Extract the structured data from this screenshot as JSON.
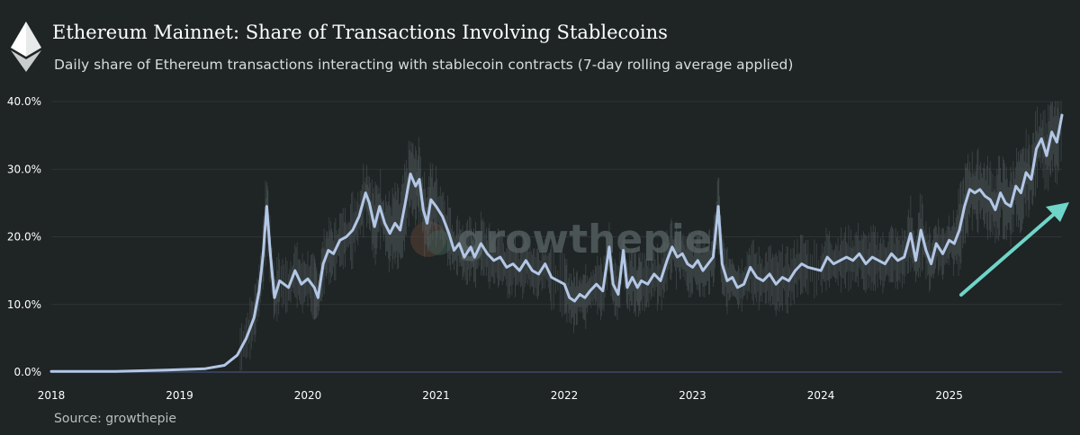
{
  "header": {
    "title": "Ethereum Mainnet: Share of Transactions Involving Stablecoins",
    "subtitle": "Daily share of Ethereum transactions interacting with stablecoin contracts (7-day rolling average applied)",
    "logo_icon": "ethereum-logo-icon"
  },
  "watermark": {
    "text": "growthepie"
  },
  "footer": {
    "source": "Source: growthepie"
  },
  "colors": {
    "background": "#1f2424",
    "line": "#b3c7e6",
    "noise": "#596366",
    "grid": "#2e3436",
    "baseline": "#3d4a66",
    "arrow": "#6fd5c8"
  },
  "chart_data": {
    "type": "line",
    "title": "Ethereum Mainnet: Share of Transactions Involving Stablecoins",
    "subtitle": "Daily share of Ethereum transactions interacting with stablecoin contracts (7-day rolling average applied)",
    "xlabel": "",
    "ylabel": "",
    "x_ticks": [
      "2018",
      "2019",
      "2020",
      "2021",
      "2022",
      "2023",
      "2024",
      "2025"
    ],
    "y_ticks": [
      "0.0%",
      "10.0%",
      "20.0%",
      "30.0%",
      "40.0%"
    ],
    "xlim": [
      2018.0,
      2025.88
    ],
    "ylim": [
      0,
      40
    ],
    "grid": "horizontal",
    "annotation": "upward-arrow",
    "series": [
      {
        "values": [
          [
            2018.0,
            0.1
          ],
          [
            2018.5,
            0.1
          ],
          [
            2018.9,
            0.3
          ],
          [
            2019.2,
            0.5
          ],
          [
            2019.35,
            1.0
          ],
          [
            2019.45,
            2.5
          ],
          [
            2019.52,
            5.0
          ],
          [
            2019.58,
            8.0
          ],
          [
            2019.62,
            12.0
          ],
          [
            2019.65,
            17.0
          ],
          [
            2019.68,
            24.5
          ],
          [
            2019.71,
            17.0
          ],
          [
            2019.74,
            11.0
          ],
          [
            2019.78,
            13.5
          ],
          [
            2019.85,
            12.5
          ],
          [
            2019.9,
            15.0
          ],
          [
            2019.95,
            13.0
          ],
          [
            2020.0,
            13.8
          ],
          [
            2020.05,
            12.5
          ],
          [
            2020.08,
            11.0
          ],
          [
            2020.12,
            16.0
          ],
          [
            2020.16,
            18.0
          ],
          [
            2020.2,
            17.5
          ],
          [
            2020.25,
            19.5
          ],
          [
            2020.3,
            20.0
          ],
          [
            2020.35,
            21.0
          ],
          [
            2020.4,
            23.0
          ],
          [
            2020.45,
            26.5
          ],
          [
            2020.48,
            25.0
          ],
          [
            2020.52,
            21.5
          ],
          [
            2020.56,
            24.5
          ],
          [
            2020.6,
            22.0
          ],
          [
            2020.64,
            20.5
          ],
          [
            2020.68,
            22.0
          ],
          [
            2020.72,
            21.0
          ],
          [
            2020.76,
            25.0
          ],
          [
            2020.8,
            29.3
          ],
          [
            2020.84,
            27.5
          ],
          [
            2020.87,
            28.5
          ],
          [
            2020.9,
            24.0
          ],
          [
            2020.93,
            22.0
          ],
          [
            2020.96,
            25.5
          ],
          [
            2021.0,
            24.5
          ],
          [
            2021.05,
            23.0
          ],
          [
            2021.1,
            20.5
          ],
          [
            2021.14,
            18.0
          ],
          [
            2021.18,
            19.0
          ],
          [
            2021.22,
            17.0
          ],
          [
            2021.27,
            18.5
          ],
          [
            2021.3,
            17.0
          ],
          [
            2021.35,
            19.0
          ],
          [
            2021.4,
            17.5
          ],
          [
            2021.45,
            16.5
          ],
          [
            2021.5,
            17.0
          ],
          [
            2021.55,
            15.5
          ],
          [
            2021.6,
            16.0
          ],
          [
            2021.65,
            15.0
          ],
          [
            2021.7,
            16.5
          ],
          [
            2021.75,
            15.0
          ],
          [
            2021.8,
            14.5
          ],
          [
            2021.85,
            16.0
          ],
          [
            2021.9,
            14.0
          ],
          [
            2022.0,
            13.0
          ],
          [
            2022.04,
            11.0
          ],
          [
            2022.08,
            10.5
          ],
          [
            2022.12,
            11.5
          ],
          [
            2022.16,
            11.0
          ],
          [
            2022.2,
            12.0
          ],
          [
            2022.25,
            13.0
          ],
          [
            2022.3,
            12.0
          ],
          [
            2022.35,
            18.5
          ],
          [
            2022.38,
            13.0
          ],
          [
            2022.42,
            11.5
          ],
          [
            2022.46,
            18.0
          ],
          [
            2022.49,
            12.5
          ],
          [
            2022.53,
            14.0
          ],
          [
            2022.57,
            12.5
          ],
          [
            2022.6,
            13.5
          ],
          [
            2022.65,
            13.0
          ],
          [
            2022.7,
            14.5
          ],
          [
            2022.75,
            13.5
          ],
          [
            2022.8,
            16.5
          ],
          [
            2022.84,
            18.5
          ],
          [
            2022.88,
            17.0
          ],
          [
            2022.92,
            17.5
          ],
          [
            2022.96,
            16.0
          ],
          [
            2023.0,
            15.5
          ],
          [
            2023.04,
            16.5
          ],
          [
            2023.08,
            15.0
          ],
          [
            2023.12,
            16.0
          ],
          [
            2023.16,
            17.0
          ],
          [
            2023.2,
            24.5
          ],
          [
            2023.23,
            16.0
          ],
          [
            2023.27,
            13.5
          ],
          [
            2023.31,
            14.0
          ],
          [
            2023.35,
            12.5
          ],
          [
            2023.4,
            13.0
          ],
          [
            2023.45,
            15.5
          ],
          [
            2023.5,
            14.0
          ],
          [
            2023.55,
            13.5
          ],
          [
            2023.6,
            14.5
          ],
          [
            2023.65,
            13.0
          ],
          [
            2023.7,
            14.0
          ],
          [
            2023.75,
            13.5
          ],
          [
            2023.8,
            15.0
          ],
          [
            2023.85,
            16.0
          ],
          [
            2023.9,
            15.5
          ],
          [
            2024.0,
            15.0
          ],
          [
            2024.05,
            17.0
          ],
          [
            2024.1,
            16.0
          ],
          [
            2024.15,
            16.5
          ],
          [
            2024.2,
            17.0
          ],
          [
            2024.25,
            16.5
          ],
          [
            2024.3,
            17.5
          ],
          [
            2024.35,
            16.0
          ],
          [
            2024.4,
            17.0
          ],
          [
            2024.45,
            16.5
          ],
          [
            2024.5,
            16.0
          ],
          [
            2024.55,
            17.5
          ],
          [
            2024.6,
            16.5
          ],
          [
            2024.65,
            17.0
          ],
          [
            2024.7,
            20.5
          ],
          [
            2024.74,
            16.5
          ],
          [
            2024.78,
            21.0
          ],
          [
            2024.82,
            18.0
          ],
          [
            2024.86,
            16.0
          ],
          [
            2024.9,
            19.0
          ],
          [
            2024.95,
            17.5
          ],
          [
            2025.0,
            19.5
          ],
          [
            2025.04,
            19.0
          ],
          [
            2025.08,
            21.0
          ],
          [
            2025.12,
            24.5
          ],
          [
            2025.16,
            27.0
          ],
          [
            2025.2,
            26.5
          ],
          [
            2025.24,
            27.0
          ],
          [
            2025.28,
            26.0
          ],
          [
            2025.32,
            25.5
          ],
          [
            2025.36,
            24.0
          ],
          [
            2025.4,
            26.5
          ],
          [
            2025.44,
            25.0
          ],
          [
            2025.48,
            24.5
          ],
          [
            2025.52,
            27.5
          ],
          [
            2025.56,
            26.5
          ],
          [
            2025.6,
            29.5
          ],
          [
            2025.64,
            28.5
          ],
          [
            2025.68,
            33.0
          ],
          [
            2025.72,
            34.5
          ],
          [
            2025.76,
            32.0
          ],
          [
            2025.8,
            35.5
          ],
          [
            2025.84,
            34.0
          ],
          [
            2025.88,
            38.0
          ]
        ]
      }
    ]
  }
}
